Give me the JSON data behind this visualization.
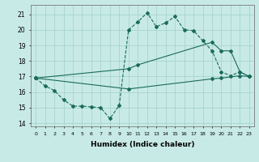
{
  "xlabel": "Humidex (Indice chaleur)",
  "bg_color": "#c8eae6",
  "grid_color": "#a0d0cc",
  "line_color": "#1a6b5a",
  "xlim": [
    -0.5,
    23.5
  ],
  "ylim": [
    13.8,
    21.6
  ],
  "yticks": [
    14,
    15,
    16,
    17,
    18,
    19,
    20,
    21
  ],
  "xticks": [
    0,
    1,
    2,
    3,
    4,
    5,
    6,
    7,
    8,
    9,
    10,
    11,
    12,
    13,
    14,
    15,
    16,
    17,
    18,
    19,
    20,
    21,
    22,
    23
  ],
  "line1_x": [
    0,
    1,
    2,
    3,
    4,
    5,
    6,
    7,
    8,
    9,
    10,
    11,
    12,
    13,
    14,
    15,
    16,
    17,
    18,
    19,
    20,
    21,
    22,
    23
  ],
  "line1_y": [
    16.9,
    16.4,
    16.1,
    15.5,
    15.1,
    15.1,
    15.05,
    15.0,
    14.3,
    15.15,
    20.0,
    20.5,
    21.1,
    20.2,
    20.45,
    20.85,
    20.0,
    19.95,
    19.3,
    18.65,
    17.3,
    17.05,
    17.3,
    17.0
  ],
  "line2_x": [
    0,
    10,
    11,
    19,
    20,
    21,
    22,
    23
  ],
  "line2_y": [
    16.9,
    17.5,
    17.75,
    19.2,
    18.65,
    18.65,
    17.3,
    17.0
  ],
  "line3_x": [
    0,
    10,
    19,
    20,
    22,
    23
  ],
  "line3_y": [
    16.9,
    16.2,
    16.85,
    16.9,
    17.05,
    17.0
  ],
  "figsize": [
    3.2,
    2.0
  ],
  "dpi": 100
}
